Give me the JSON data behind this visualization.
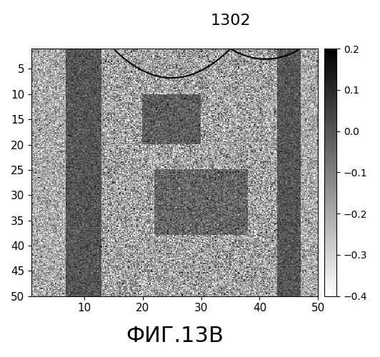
{
  "title": "ФИГ.13В",
  "annotation_label": "1302",
  "xticks": [
    10,
    20,
    30,
    40,
    50
  ],
  "yticks": [
    5,
    10,
    15,
    20,
    25,
    30,
    35,
    40,
    45,
    50
  ],
  "vmin": -0.4,
  "vmax": 0.2,
  "colorbar_ticks": [
    0.2,
    0.1,
    0.0,
    -0.1,
    -0.2,
    -0.3,
    -0.4
  ],
  "cmap": "gray_r",
  "seed": 17,
  "figsize": [
    5.32,
    5.0
  ],
  "dpi": 100,
  "title_fontsize": 22,
  "tick_fontsize": 11,
  "colorbar_fontsize": 10,
  "N": 300
}
